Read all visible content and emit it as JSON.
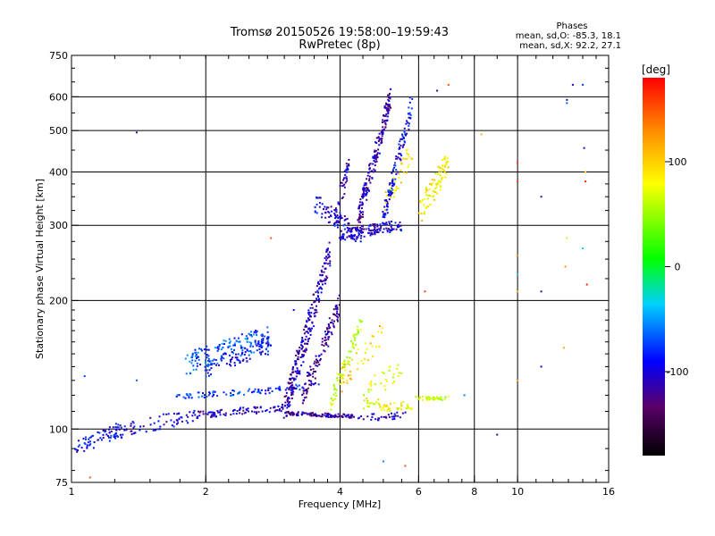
{
  "chart_data": {
    "type": "scatter",
    "title": "Tromsø 20150526 19:58:00–19:59:43",
    "subtitle": "RwPretec (8p)",
    "xlabel": "Frequency [MHz]",
    "ylabel": "Stationary phase Virtual Height [km]",
    "x_scale": "log2",
    "y_scale": "log",
    "xlim": [
      1,
      16
    ],
    "ylim": [
      75,
      750
    ],
    "x_ticks": [
      1,
      2,
      4,
      6,
      8,
      10,
      16
    ],
    "x_tick_labels": [
      "1",
      "2",
      "4",
      "6",
      "8",
      "10",
      "16"
    ],
    "y_ticks": [
      75,
      100,
      200,
      300,
      400,
      500,
      600,
      750
    ],
    "y_tick_labels": [
      "75",
      "100",
      "200",
      "300",
      "400",
      "500",
      "600",
      "750"
    ],
    "grid": true,
    "phases_box": {
      "heading": "Phases",
      "line1": "mean, sd,O:  -85.3, 18.1",
      "line2": "mean, sd,X:  92.2, 27.1"
    },
    "colorbar": {
      "label": "[deg]",
      "range": [
        -180,
        180
      ],
      "ticks": [
        100,
        0,
        -100
      ],
      "tick_labels": [
        "100",
        "0",
        "-100"
      ]
    },
    "traces": [
      {
        "f_from": 1.0,
        "f_to": 1.4,
        "h_from": 90,
        "h_to": 102,
        "spread": 0.04,
        "phase": -95,
        "n": 70
      },
      {
        "f_from": 1.2,
        "f_to": 1.9,
        "h_from": 98,
        "h_to": 108,
        "spread": 0.04,
        "phase": -100,
        "n": 70
      },
      {
        "f_from": 1.9,
        "f_to": 3.0,
        "h_from": 108,
        "h_to": 112,
        "spread": 0.02,
        "phase": -110,
        "n": 90
      },
      {
        "f_from": 3.0,
        "f_to": 4.3,
        "h_from": 109,
        "h_to": 107,
        "spread": 0.01,
        "phase": -120,
        "n": 110
      },
      {
        "f_from": 4.3,
        "f_to": 5.6,
        "h_from": 106,
        "h_to": 108,
        "spread": 0.02,
        "phase": -112,
        "n": 35
      },
      {
        "f_from": 1.7,
        "f_to": 2.7,
        "h_from": 119,
        "h_to": 123,
        "spread": 0.015,
        "phase": -80,
        "n": 60
      },
      {
        "f_from": 2.7,
        "f_to": 3.6,
        "h_from": 123,
        "h_to": 126,
        "spread": 0.02,
        "phase": -95,
        "n": 40
      },
      {
        "f_from": 1.8,
        "f_to": 2.8,
        "h_from": 142,
        "h_to": 165,
        "spread": 0.06,
        "phase": -75,
        "n": 150
      },
      {
        "f_from": 2.0,
        "f_to": 2.8,
        "h_from": 138,
        "h_to": 158,
        "spread": 0.05,
        "phase": -95,
        "n": 90
      },
      {
        "f_from": 3.0,
        "f_to": 3.8,
        "h_from": 110,
        "h_to": 260,
        "spread": 0.08,
        "phase": -110,
        "n": 240
      },
      {
        "f_from": 3.3,
        "f_to": 4.0,
        "h_from": 120,
        "h_to": 195,
        "spread": 0.06,
        "phase": -120,
        "n": 120
      },
      {
        "f_from": 3.8,
        "f_to": 4.5,
        "h_from": 115,
        "h_to": 180,
        "spread": 0.05,
        "phase": 60,
        "n": 70
      },
      {
        "f_from": 3.5,
        "f_to": 4.5,
        "h_from": 340,
        "h_to": 280,
        "spread": 0.05,
        "phase": -100,
        "n": 90
      },
      {
        "f_from": 3.9,
        "f_to": 4.2,
        "h_from": 300,
        "h_to": 430,
        "spread": 0.07,
        "phase": -110,
        "n": 45
      },
      {
        "f_from": 4.0,
        "f_to": 5.5,
        "h_from": 285,
        "h_to": 300,
        "spread": 0.03,
        "phase": -105,
        "n": 130
      },
      {
        "f_from": 4.4,
        "f_to": 5.2,
        "h_from": 310,
        "h_to": 600,
        "spread": 0.06,
        "phase": -115,
        "n": 180
      },
      {
        "f_from": 5.0,
        "f_to": 5.8,
        "h_from": 310,
        "h_to": 580,
        "spread": 0.06,
        "phase": -95,
        "n": 120
      },
      {
        "f_from": 5.0,
        "f_to": 5.8,
        "h_from": 330,
        "h_to": 450,
        "spread": 0.06,
        "phase": 90,
        "n": 35
      },
      {
        "f_from": 4.5,
        "f_to": 5.8,
        "h_from": 115,
        "h_to": 112,
        "spread": 0.03,
        "phase": 80,
        "n": 50
      },
      {
        "f_from": 4.5,
        "f_to": 5.5,
        "h_from": 120,
        "h_to": 140,
        "spread": 0.06,
        "phase": 70,
        "n": 30
      },
      {
        "f_from": 5.9,
        "f_to": 7.0,
        "h_from": 118,
        "h_to": 118,
        "spread": 0.01,
        "phase": 60,
        "n": 40
      },
      {
        "f_from": 6.0,
        "f_to": 7.0,
        "h_from": 320,
        "h_to": 420,
        "spread": 0.07,
        "phase": 85,
        "n": 90
      },
      {
        "f_from": 4.0,
        "f_to": 5.0,
        "h_from": 130,
        "h_to": 170,
        "spread": 0.07,
        "phase": 100,
        "n": 40
      }
    ],
    "isolated_points": [
      {
        "f": 1.4,
        "h": 495,
        "phase": -110
      },
      {
        "f": 2.8,
        "h": 280,
        "phase": 150
      },
      {
        "f": 3.15,
        "h": 190,
        "phase": -95
      },
      {
        "f": 6.2,
        "h": 210,
        "phase": 160
      },
      {
        "f": 6.6,
        "h": 620,
        "phase": -120
      },
      {
        "f": 7.0,
        "h": 640,
        "phase": 150
      },
      {
        "f": 8.3,
        "h": 490,
        "phase": 110
      },
      {
        "f": 9.0,
        "h": 97,
        "phase": -120
      },
      {
        "f": 7.6,
        "h": 120,
        "phase": -60
      },
      {
        "f": 5.6,
        "h": 82,
        "phase": 150
      },
      {
        "f": 5.0,
        "h": 84,
        "phase": -60
      },
      {
        "f": 10.0,
        "h": 420,
        "phase": 160
      },
      {
        "f": 10.0,
        "h": 380,
        "phase": 160
      },
      {
        "f": 10.0,
        "h": 230,
        "phase": -30
      },
      {
        "f": 10.0,
        "h": 210,
        "phase": 110
      },
      {
        "f": 10.0,
        "h": 130,
        "phase": 120
      },
      {
        "f": 11.3,
        "h": 350,
        "phase": -120
      },
      {
        "f": 11.3,
        "h": 210,
        "phase": -120
      },
      {
        "f": 11.3,
        "h": 140,
        "phase": -100
      },
      {
        "f": 12.9,
        "h": 590,
        "phase": -110
      },
      {
        "f": 12.9,
        "h": 580,
        "phase": -70
      },
      {
        "f": 13.3,
        "h": 640,
        "phase": -110
      },
      {
        "f": 14.0,
        "h": 640,
        "phase": -80
      },
      {
        "f": 14.1,
        "h": 455,
        "phase": -110
      },
      {
        "f": 14.2,
        "h": 400,
        "phase": 100
      },
      {
        "f": 14.2,
        "h": 380,
        "phase": 170
      },
      {
        "f": 14.0,
        "h": 265,
        "phase": -40
      },
      {
        "f": 14.3,
        "h": 218,
        "phase": 170
      },
      {
        "f": 12.9,
        "h": 280,
        "phase": 60
      },
      {
        "f": 12.8,
        "h": 240,
        "phase": 130
      },
      {
        "f": 12.7,
        "h": 155,
        "phase": 120
      },
      {
        "f": 10.0,
        "h": 255,
        "phase": 130
      },
      {
        "f": 1.1,
        "h": 77,
        "phase": 150
      },
      {
        "f": 1.07,
        "h": 133,
        "phase": -80
      },
      {
        "f": 1.4,
        "h": 130,
        "phase": -70
      }
    ]
  }
}
